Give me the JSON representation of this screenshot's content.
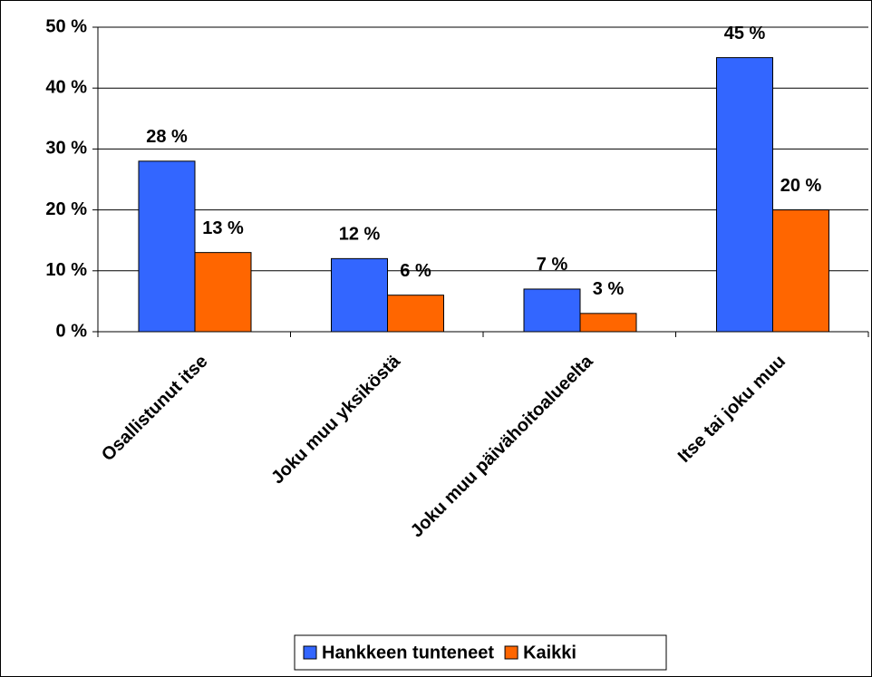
{
  "chart_data": {
    "type": "bar",
    "categories": [
      "Osallistunut itse",
      "Joku muu yksiköstä",
      "Joku muu päivähoitoalueelta",
      "Itse tai joku muu"
    ],
    "series": [
      {
        "name": "Hankkeen tunteneet",
        "color": "#3366ff",
        "values": [
          28,
          12,
          7,
          45
        ],
        "value_labels": [
          "28 %",
          "12 %",
          "7 %",
          "45 %"
        ]
      },
      {
        "name": "Kaikki",
        "color": "#ff6600",
        "values": [
          13,
          6,
          3,
          20
        ],
        "value_labels": [
          "13 %",
          "6 %",
          "3 %",
          "20 %"
        ]
      }
    ],
    "ylim": [
      0,
      50
    ],
    "yticks": [
      {
        "value": 0,
        "label": "0 %"
      },
      {
        "value": 10,
        "label": "10 %"
      },
      {
        "value": 20,
        "label": "20 %"
      },
      {
        "value": 30,
        "label": "30 %"
      },
      {
        "value": 40,
        "label": "40 %"
      },
      {
        "value": 50,
        "label": "50 %"
      }
    ],
    "grid": true,
    "legend": "bottom"
  }
}
